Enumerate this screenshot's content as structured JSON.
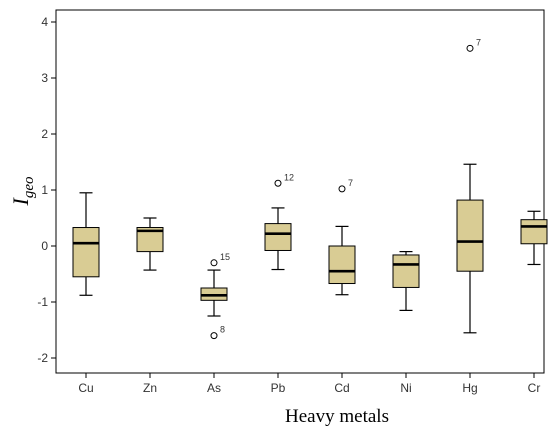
{
  "chart_data": {
    "type": "box",
    "title": "",
    "xlabel": "Heavy metals",
    "ylabel_main": "I",
    "ylabel_sub": "geo",
    "ylim": [
      -2.2,
      4.2
    ],
    "yticks": [
      -2,
      -1,
      0,
      1,
      2,
      3,
      4
    ],
    "ytick_labels": [
      "-2",
      "-1",
      "0",
      "1",
      "2",
      "3",
      "4"
    ],
    "box_color": "#d9cc94",
    "median_color": "#000000",
    "categories": [
      "Cu",
      "Zn",
      "As",
      "Pb",
      "Cd",
      "Ni",
      "Hg",
      "Cr"
    ],
    "boxes": [
      {
        "min": -0.88,
        "q1": -0.55,
        "median": 0.05,
        "q3": 0.33,
        "max": 0.95,
        "outliers": []
      },
      {
        "min": -0.43,
        "q1": -0.1,
        "median": 0.27,
        "q3": 0.33,
        "max": 0.5,
        "outliers": []
      },
      {
        "min": -1.25,
        "q1": -0.97,
        "median": -0.88,
        "q3": -0.75,
        "max": -0.43,
        "outliers": [
          {
            "value": -0.3,
            "label": "15"
          },
          {
            "value": -1.6,
            "label": "8"
          }
        ]
      },
      {
        "min": -0.42,
        "q1": -0.08,
        "median": 0.22,
        "q3": 0.4,
        "max": 0.68,
        "outliers": [
          {
            "value": 1.12,
            "label": "12"
          }
        ]
      },
      {
        "min": -0.87,
        "q1": -0.67,
        "median": -0.45,
        "q3": 0.0,
        "max": 0.35,
        "outliers": [
          {
            "value": 1.02,
            "label": "7"
          }
        ]
      },
      {
        "min": -1.15,
        "q1": -0.74,
        "median": -0.33,
        "q3": -0.16,
        "max": -0.1,
        "outliers": []
      },
      {
        "min": -1.55,
        "q1": -0.45,
        "median": 0.08,
        "q3": 0.82,
        "max": 1.46,
        "outliers": [
          {
            "value": 3.53,
            "label": "7"
          }
        ]
      },
      {
        "min": -0.33,
        "q1": 0.04,
        "median": 0.35,
        "q3": 0.47,
        "max": 0.62,
        "outliers": []
      }
    ]
  }
}
